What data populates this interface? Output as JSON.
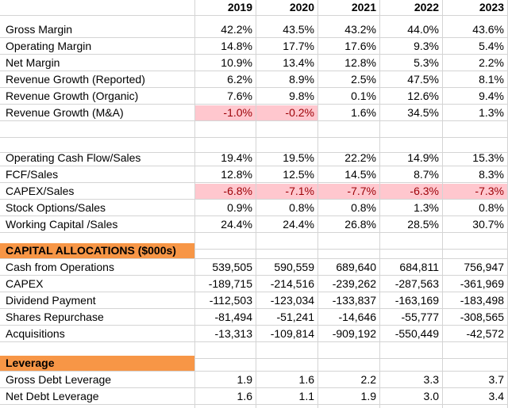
{
  "years": [
    "2019",
    "2020",
    "2021",
    "2022",
    "2023"
  ],
  "margins": [
    {
      "label": "Gross Margin",
      "values": [
        "42.2%",
        "43.5%",
        "43.2%",
        "44.0%",
        "43.6%"
      ]
    },
    {
      "label": "Operating Margin",
      "values": [
        "14.8%",
        "17.7%",
        "17.6%",
        "9.3%",
        "5.4%"
      ]
    },
    {
      "label": "Net Margin",
      "values": [
        "10.9%",
        "13.4%",
        "12.8%",
        "5.3%",
        "2.2%"
      ]
    },
    {
      "label": "Revenue Growth (Reported)",
      "values": [
        "6.2%",
        "8.9%",
        "2.5%",
        "47.5%",
        "8.1%"
      ]
    },
    {
      "label": "Revenue Growth (Organic)",
      "values": [
        "7.6%",
        "9.8%",
        "0.1%",
        "12.6%",
        "9.4%"
      ]
    },
    {
      "label": "Revenue Growth (M&A)",
      "values": [
        "-1.0%",
        "-0.2%",
        "1.6%",
        "34.5%",
        "1.3%"
      ]
    }
  ],
  "cash_ratios": [
    {
      "label": "Operating Cash Flow/Sales",
      "values": [
        "19.4%",
        "19.5%",
        "22.2%",
        "14.9%",
        "15.3%"
      ]
    },
    {
      "label": "FCF/Sales",
      "values": [
        "12.8%",
        "12.5%",
        "14.5%",
        "8.7%",
        "8.3%"
      ]
    },
    {
      "label": "CAPEX/Sales",
      "values": [
        "-6.8%",
        "-7.1%",
        "-7.7%",
        "-6.3%",
        "-7.3%"
      ]
    },
    {
      "label": "Stock Options/Sales",
      "values": [
        "0.9%",
        "0.8%",
        "0.8%",
        "1.3%",
        "0.8%"
      ]
    },
    {
      "label": "Working Capital /Sales",
      "values": [
        "24.4%",
        "24.4%",
        "26.8%",
        "28.5%",
        "30.7%"
      ]
    }
  ],
  "capital_allocations": {
    "title": "CAPITAL ALLOCATIONS ($000s)",
    "rows": [
      {
        "label": "Cash from Operations",
        "values": [
          "539,505",
          "590,559",
          "689,640",
          "684,811",
          "756,947"
        ]
      },
      {
        "label": "CAPEX",
        "values": [
          "-189,715",
          "-214,516",
          "-239,262",
          "-287,563",
          "-361,969"
        ]
      },
      {
        "label": "Dividend Payment",
        "values": [
          "-112,503",
          "-123,034",
          "-133,837",
          "-163,169",
          "-183,498"
        ]
      },
      {
        "label": "Shares Repurchase",
        "values": [
          "-81,494",
          "-51,241",
          "-14,646",
          "-55,777",
          "-308,565"
        ]
      },
      {
        "label": "Acquisitions",
        "values": [
          "-13,313",
          "-109,814",
          "-909,192",
          "-550,449",
          "-42,572"
        ]
      }
    ]
  },
  "leverage": {
    "title": "Leverage",
    "rows": [
      {
        "label": "Gross Debt Leverage",
        "values": [
          "1.9",
          "1.6",
          "2.2",
          "3.3",
          "3.7"
        ]
      },
      {
        "label": "Net Debt Leverage",
        "values": [
          "1.6",
          "1.1",
          "1.9",
          "3.0",
          "3.4"
        ]
      }
    ]
  },
  "colors": {
    "section_fill": "#f79646",
    "negative_fill": "#ffc7ce",
    "negative_text": "#9c0006",
    "gridline": "#d4d4d4"
  }
}
